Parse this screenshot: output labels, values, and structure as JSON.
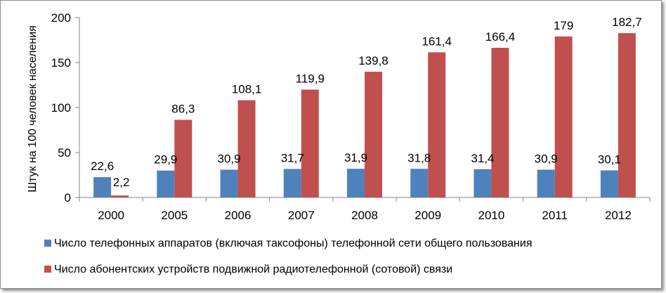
{
  "chart_data": {
    "type": "bar",
    "title": "",
    "xlabel": "",
    "ylabel": "Штук на 100 человек населения",
    "ylim": [
      0,
      200
    ],
    "yticks": [
      0,
      50,
      100,
      150,
      200
    ],
    "grid": false,
    "legend_position": "bottom",
    "categories": [
      "2000",
      "2005",
      "2006",
      "2007",
      "2008",
      "2009",
      "2010",
      "2011",
      "2012"
    ],
    "series": [
      {
        "name": "Число телефонных аппаратов (включая таксофоны) телефонной сети общего пользования",
        "color": "#4f81bd",
        "values": [
          22.6,
          29.9,
          30.9,
          31.7,
          31.9,
          31.8,
          31.4,
          30.9,
          30.1
        ],
        "labels": [
          "22,6",
          "29,9",
          "30,9",
          "31,7",
          "31,9",
          "31,8",
          "31,4",
          "30,9",
          "30,1"
        ]
      },
      {
        "name": "Число абонентских устройств подвижной радиотелефонной (сотовой) связи",
        "color": "#c0504d",
        "values": [
          2.2,
          86.3,
          108.1,
          119.9,
          139.8,
          161.4,
          166.4,
          179,
          182.7
        ],
        "labels": [
          "2,2",
          "86,3",
          "108,1",
          "119,9",
          "139,8",
          "161,4",
          "166,4",
          "179",
          "182,7"
        ]
      }
    ]
  }
}
